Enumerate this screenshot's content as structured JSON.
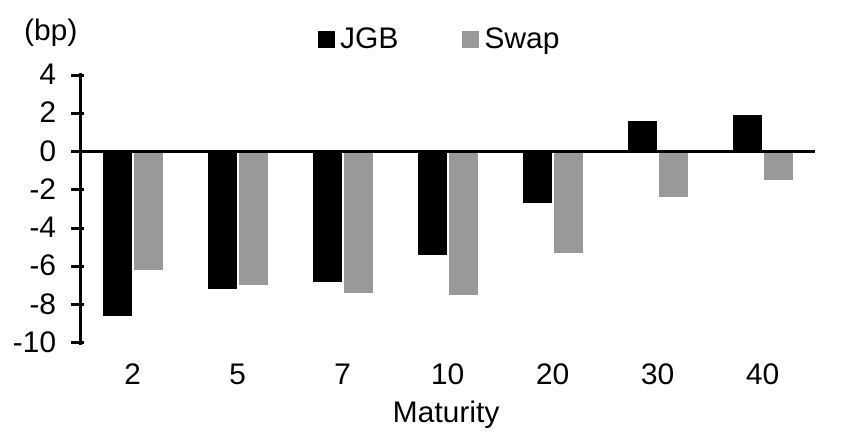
{
  "chart_data": {
    "type": "bar",
    "title": "",
    "unit_label": "(bp)",
    "xlabel": "Maturity",
    "categories": [
      "2",
      "5",
      "7",
      "10",
      "20",
      "30",
      "40"
    ],
    "series": [
      {
        "name": "JGB",
        "color": "#000000",
        "values": [
          -8.6,
          -7.2,
          -6.8,
          -5.4,
          -2.7,
          1.6,
          1.9
        ]
      },
      {
        "name": "Swap",
        "color": "#999999",
        "values": [
          -6.2,
          -7.0,
          -7.4,
          -7.5,
          -5.3,
          -2.4,
          -1.5
        ]
      }
    ],
    "ylim": [
      -10,
      4
    ],
    "yticks": [
      4,
      2,
      0,
      -2,
      -4,
      -6,
      -8,
      -10
    ],
    "legend_position": "top-center",
    "grid": false,
    "axis_color": "#000000",
    "background": "#ffffff"
  }
}
